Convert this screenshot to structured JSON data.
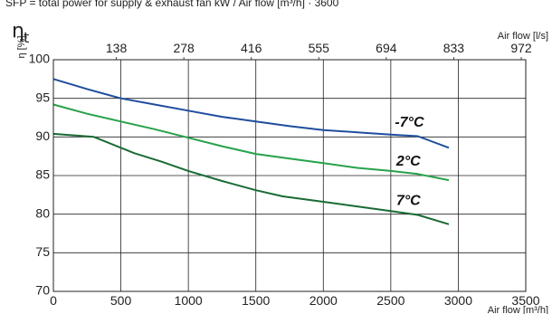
{
  "caption": "SFP = total power for supply & exhaust fan kW / Air flow [m³/h] · 3600",
  "chart_data": {
    "type": "line",
    "y_symbol": "η",
    "y_symbol_sub": "t",
    "ylabel": "η [%]",
    "xlabel": "Air flow [m³/h]",
    "x2label": "Air flow [l/s]",
    "xlim": [
      0,
      3500
    ],
    "ylim": [
      70,
      100
    ],
    "xticks": [
      0,
      500,
      1000,
      1500,
      2000,
      2500,
      3000,
      3500
    ],
    "yticks": [
      70,
      75,
      80,
      85,
      90,
      95,
      100
    ],
    "x2ticks": [
      {
        "label": "138",
        "x": 500
      },
      {
        "label": "278",
        "x": 1000
      },
      {
        "label": "416",
        "x": 1500
      },
      {
        "label": "555",
        "x": 2000
      },
      {
        "label": "694",
        "x": 2500
      },
      {
        "label": "833",
        "x": 3000
      },
      {
        "label": "972",
        "x": 3500
      }
    ],
    "grid": true,
    "legend": "none",
    "series": [
      {
        "name": "-7°C",
        "color": "#1f4e9e",
        "x": [
          0,
          250,
          500,
          750,
          1000,
          1250,
          1500,
          1750,
          2000,
          2250,
          2500,
          2700,
          2930
        ],
        "y": [
          97.5,
          96.2,
          95.0,
          94.2,
          93.4,
          92.6,
          92.0,
          91.4,
          90.9,
          90.6,
          90.3,
          90.1,
          88.6
        ]
      },
      {
        "name": "2°C",
        "color": "#27a24a",
        "x": [
          0,
          250,
          500,
          750,
          1000,
          1250,
          1500,
          1750,
          2000,
          2250,
          2500,
          2700,
          2930
        ],
        "y": [
          94.2,
          93.0,
          92.0,
          91.0,
          89.9,
          88.8,
          87.8,
          87.2,
          86.6,
          86.0,
          85.6,
          85.2,
          84.4
        ]
      },
      {
        "name": "7°C",
        "color": "#1a6b35",
        "x": [
          0,
          300,
          500,
          600,
          800,
          1000,
          1250,
          1500,
          1700,
          2000,
          2250,
          2500,
          2700,
          2930
        ],
        "y": [
          90.4,
          90.0,
          88.6,
          87.9,
          86.8,
          85.6,
          84.3,
          83.1,
          82.3,
          81.6,
          81.0,
          80.4,
          79.9,
          78.7
        ]
      }
    ],
    "annotations": [
      {
        "text": "-7°C",
        "x": 2530,
        "y": 91.3
      },
      {
        "text": "2°C",
        "x": 2540,
        "y": 86.3
      },
      {
        "text": "7°C",
        "x": 2540,
        "y": 81.2
      }
    ]
  }
}
